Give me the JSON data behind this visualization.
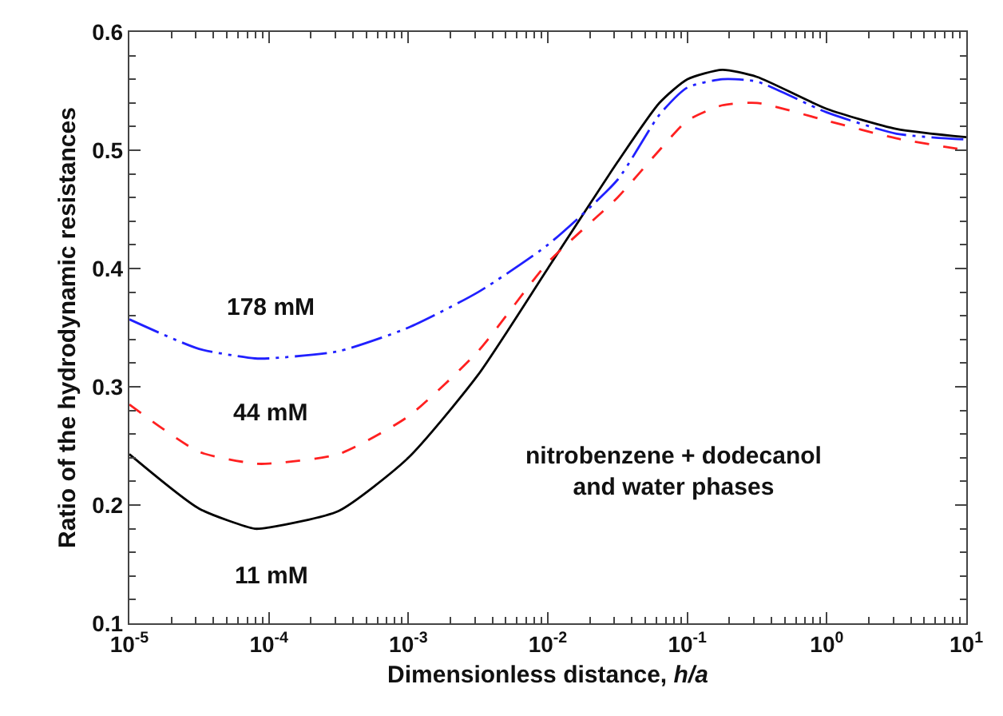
{
  "chart_data": {
    "type": "line",
    "xlabel": "Dimensionless distance, *h/a*",
    "ylabel": "Ratio of the hydrodynamic resistances",
    "x": [
      1e-05,
      3.16e-05,
      7.94e-05,
      0.0001,
      0.000316,
      0.001,
      0.00316,
      0.01,
      0.0316,
      0.0631,
      0.1,
      0.178,
      0.316,
      1,
      3.16,
      10
    ],
    "series": [
      {
        "name": "11 mM",
        "color": "#000000",
        "line_style": "solid",
        "values": [
          0.243,
          0.197,
          0.18,
          0.181,
          0.195,
          0.24,
          0.31,
          0.4,
          0.49,
          0.54,
          0.56,
          0.568,
          0.562,
          0.535,
          0.518,
          0.511
        ]
      },
      {
        "name": "44 mM",
        "color": "#ff2020",
        "line_style": "dashed",
        "values": [
          0.285,
          0.245,
          0.235,
          0.235,
          0.243,
          0.275,
          0.33,
          0.405,
          0.46,
          0.5,
          0.525,
          0.538,
          0.54,
          0.525,
          0.51,
          0.5
        ]
      },
      {
        "name": "178 mM",
        "color": "#2020ff",
        "line_style": "dashdot",
        "values": [
          0.357,
          0.332,
          0.324,
          0.324,
          0.33,
          0.35,
          0.38,
          0.42,
          0.475,
          0.53,
          0.553,
          0.56,
          0.558,
          0.532,
          0.514,
          0.509
        ]
      }
    ],
    "annotations": [
      "nitrobenzene + dodecanol\nand water phases"
    ],
    "log": "x",
    "xlim": [
      1e-05,
      10
    ],
    "xticks": [
      {
        "value": 1e-05,
        "label": "10$^{-5}$"
      },
      {
        "value": 0.0001,
        "label": "10$^{-4}$"
      },
      {
        "value": 0.001,
        "label": "10$^{-3}$"
      },
      {
        "value": 0.01,
        "label": "10$^{-2}$"
      },
      {
        "value": 0.1,
        "label": "10$^{-1}$"
      },
      {
        "value": 1,
        "label": "10$^{0}$"
      },
      {
        "value": 10,
        "label": "10$^{1}$"
      }
    ],
    "ylim": [
      0.1,
      0.6
    ],
    "yticks": [
      {
        "value": 0.1,
        "label": "0.1"
      },
      {
        "value": 0.2,
        "label": "0.2"
      },
      {
        "value": 0.3,
        "label": "0.3"
      },
      {
        "value": 0.4,
        "label": "0.4"
      },
      {
        "value": 0.5,
        "label": "0.5"
      },
      {
        "value": 0.6,
        "label": "0.6"
      }
    ],
    "grid": false,
    "legend": false
  }
}
